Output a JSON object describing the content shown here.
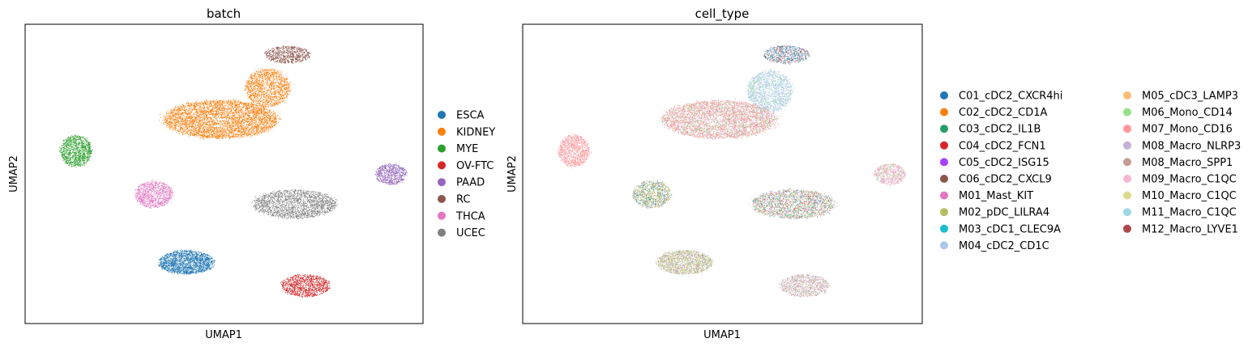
{
  "chart_data": [
    {
      "type": "scatter",
      "title": "batch",
      "xlabel": "UMAP1",
      "ylabel": "UMAP2",
      "xlim": [
        -1,
        21
      ],
      "ylim": [
        -1,
        17
      ],
      "grid": false,
      "legend": "right",
      "series": [
        {
          "name": "ESCA",
          "color": "#1f77b4",
          "clusters": [
            {
              "cx": 7.9,
              "cy": 2.7,
              "rx": 1.6,
              "ry": 0.75,
              "n": 1800
            }
          ]
        },
        {
          "name": "KIDNEY",
          "color": "#ff7f0e",
          "clusters": [
            {
              "cx": 9.8,
              "cy": 11.3,
              "rx": 3.3,
              "ry": 1.2,
              "n": 4200
            },
            {
              "cx": 12.4,
              "cy": 13.2,
              "rx": 1.3,
              "ry": 1.2,
              "n": 1400
            }
          ]
        },
        {
          "name": "MYE",
          "color": "#2ca02c",
          "clusters": [
            {
              "cx": 1.8,
              "cy": 9.4,
              "rx": 0.9,
              "ry": 1.0,
              "n": 1100
            }
          ]
        },
        {
          "name": "OV-FTC",
          "color": "#d62728",
          "clusters": [
            {
              "cx": 14.5,
              "cy": 1.3,
              "rx": 1.4,
              "ry": 0.7,
              "n": 1100
            }
          ]
        },
        {
          "name": "PAAD",
          "color": "#9467bd",
          "clusters": [
            {
              "cx": 19.2,
              "cy": 8.0,
              "rx": 0.9,
              "ry": 0.65,
              "n": 700
            }
          ]
        },
        {
          "name": "RC",
          "color": "#8c564b",
          "clusters": [
            {
              "cx": 13.5,
              "cy": 15.2,
              "rx": 1.3,
              "ry": 0.55,
              "n": 700
            }
          ]
        },
        {
          "name": "THCA",
          "color": "#e377c2",
          "clusters": [
            {
              "cx": 6.1,
              "cy": 6.8,
              "rx": 1.1,
              "ry": 0.85,
              "n": 1000
            }
          ]
        },
        {
          "name": "UCEC",
          "color": "#7f7f7f",
          "clusters": [
            {
              "cx": 13.9,
              "cy": 6.2,
              "rx": 2.4,
              "ry": 0.9,
              "n": 2000
            }
          ]
        }
      ]
    },
    {
      "type": "scatter",
      "title": "cell_type",
      "xlabel": "UMAP1",
      "ylabel": "UMAP2",
      "xlim": [
        -1,
        21
      ],
      "ylim": [
        -1,
        17
      ],
      "grid": false,
      "legend": "right",
      "legend_columns": 2,
      "series": [
        {
          "name": "C01_cDC2_CXCR4hi",
          "color": "#1f77b4"
        },
        {
          "name": "C02_cDC2_CD1A",
          "color": "#ff7f0e"
        },
        {
          "name": "C03_cDC2_IL1B",
          "color": "#279e68"
        },
        {
          "name": "C04_cDC2_FCN1",
          "color": "#d62728"
        },
        {
          "name": "C05_cDC2_ISG15",
          "color": "#aa40fc"
        },
        {
          "name": "C06_cDC2_CXCL9",
          "color": "#8c564b"
        },
        {
          "name": "M01_Mast_KIT",
          "color": "#e377c2"
        },
        {
          "name": "M02_pDC_LILRA4",
          "color": "#b5bd61"
        },
        {
          "name": "M03_cDC1_CLEC9A",
          "color": "#17becf"
        },
        {
          "name": "M04_cDC2_CD1C",
          "color": "#aec7e8"
        },
        {
          "name": "M05_cDC3_LAMP3",
          "color": "#ffbb78"
        },
        {
          "name": "M06_Mono_CD14",
          "color": "#98df8a"
        },
        {
          "name": "M07_Mono_CD16",
          "color": "#ff9896"
        },
        {
          "name": "M08_Macro_NLRP3",
          "color": "#c5b0d5"
        },
        {
          "name": "M08_Macro_SPP1",
          "color": "#c49c94"
        },
        {
          "name": "M09_Macro_C1QC",
          "color": "#f7b6d2"
        },
        {
          "name": "M10_Macro_C1QC",
          "color": "#dbdb8d"
        },
        {
          "name": "M11_Macro_C1QC",
          "color": "#9edae5"
        },
        {
          "name": "M12_Macro_LYVE1",
          "color": "#ad494a"
        }
      ],
      "clusters": [
        {
          "cx": 13.5,
          "cy": 15.2,
          "rx": 1.3,
          "ry": 0.55,
          "n": 800,
          "mix": {
            "C01_cDC2_CXCR4hi": 0.35,
            "C06_cDC2_CXCL9": 0.15,
            "C03_cDC2_IL1B": 0.1,
            "M04_cDC2_CD1C": 0.25,
            "C04_cDC2_FCN1": 0.05,
            "M07_Mono_CD16": 0.1
          }
        },
        {
          "cx": 12.6,
          "cy": 13.0,
          "rx": 1.3,
          "ry": 1.3,
          "n": 1600,
          "mix": {
            "M04_cDC2_CD1C": 0.8,
            "M11_Macro_C1QC": 0.1,
            "M06_Mono_CD14": 0.1
          }
        },
        {
          "cx": 9.8,
          "cy": 11.3,
          "rx": 3.3,
          "ry": 1.2,
          "n": 4400,
          "mix": {
            "M07_Mono_CD16": 0.45,
            "M06_Mono_CD14": 0.2,
            "M01_Mast_KIT": 0.1,
            "M08_Macro_SPP1": 0.1,
            "M09_Macro_C1QC": 0.1,
            "M11_Macro_C1QC": 0.05
          }
        },
        {
          "cx": 1.8,
          "cy": 9.4,
          "rx": 0.9,
          "ry": 1.0,
          "n": 1100,
          "mix": {
            "M07_Mono_CD16": 0.85,
            "M09_Macro_C1QC": 0.15
          }
        },
        {
          "cx": 19.2,
          "cy": 8.0,
          "rx": 0.9,
          "ry": 0.65,
          "n": 700,
          "mix": {
            "M09_Macro_C1QC": 0.4,
            "M06_Mono_CD14": 0.3,
            "M01_Mast_KIT": 0.2,
            "M07_Mono_CD16": 0.1
          }
        },
        {
          "cx": 6.1,
          "cy": 6.8,
          "rx": 1.1,
          "ry": 0.85,
          "n": 1000,
          "mix": {
            "C01_cDC2_CXCR4hi": 0.15,
            "C03_cDC2_IL1B": 0.1,
            "M02_pDC_LILRA4": 0.15,
            "M04_cDC2_CD1C": 0.1,
            "M06_Mono_CD14": 0.15,
            "M08_Macro_SPP1": 0.15,
            "C02_cDC2_CD1A": 0.1,
            "M10_Macro_C1QC": 0.1
          }
        },
        {
          "cx": 13.9,
          "cy": 6.2,
          "rx": 2.4,
          "ry": 0.9,
          "n": 2200,
          "mix": {
            "M06_Mono_CD14": 0.2,
            "C01_cDC2_CXCR4hi": 0.1,
            "C03_cDC2_IL1B": 0.1,
            "M08_Macro_SPP1": 0.1,
            "M01_Mast_KIT": 0.1,
            "C04_cDC2_FCN1": 0.1,
            "M09_Macro_C1QC": 0.1,
            "M02_pDC_LILRA4": 0.1,
            "M04_cDC2_CD1C": 0.1
          }
        },
        {
          "cx": 7.9,
          "cy": 2.7,
          "rx": 1.6,
          "ry": 0.75,
          "n": 1800,
          "mix": {
            "M08_Macro_NLRP3": 0.3,
            "M10_Macro_C1QC": 0.25,
            "M06_Mono_CD14": 0.2,
            "M08_Macro_SPP1": 0.15,
            "C06_cDC2_CXCL9": 0.1
          }
        },
        {
          "cx": 14.5,
          "cy": 1.3,
          "rx": 1.4,
          "ry": 0.7,
          "n": 1100,
          "mix": {
            "M08_Macro_SPP1": 0.45,
            "M09_Macro_C1QC": 0.3,
            "M06_Mono_CD14": 0.15,
            "M11_Macro_C1QC": 0.1
          }
        }
      ]
    }
  ]
}
